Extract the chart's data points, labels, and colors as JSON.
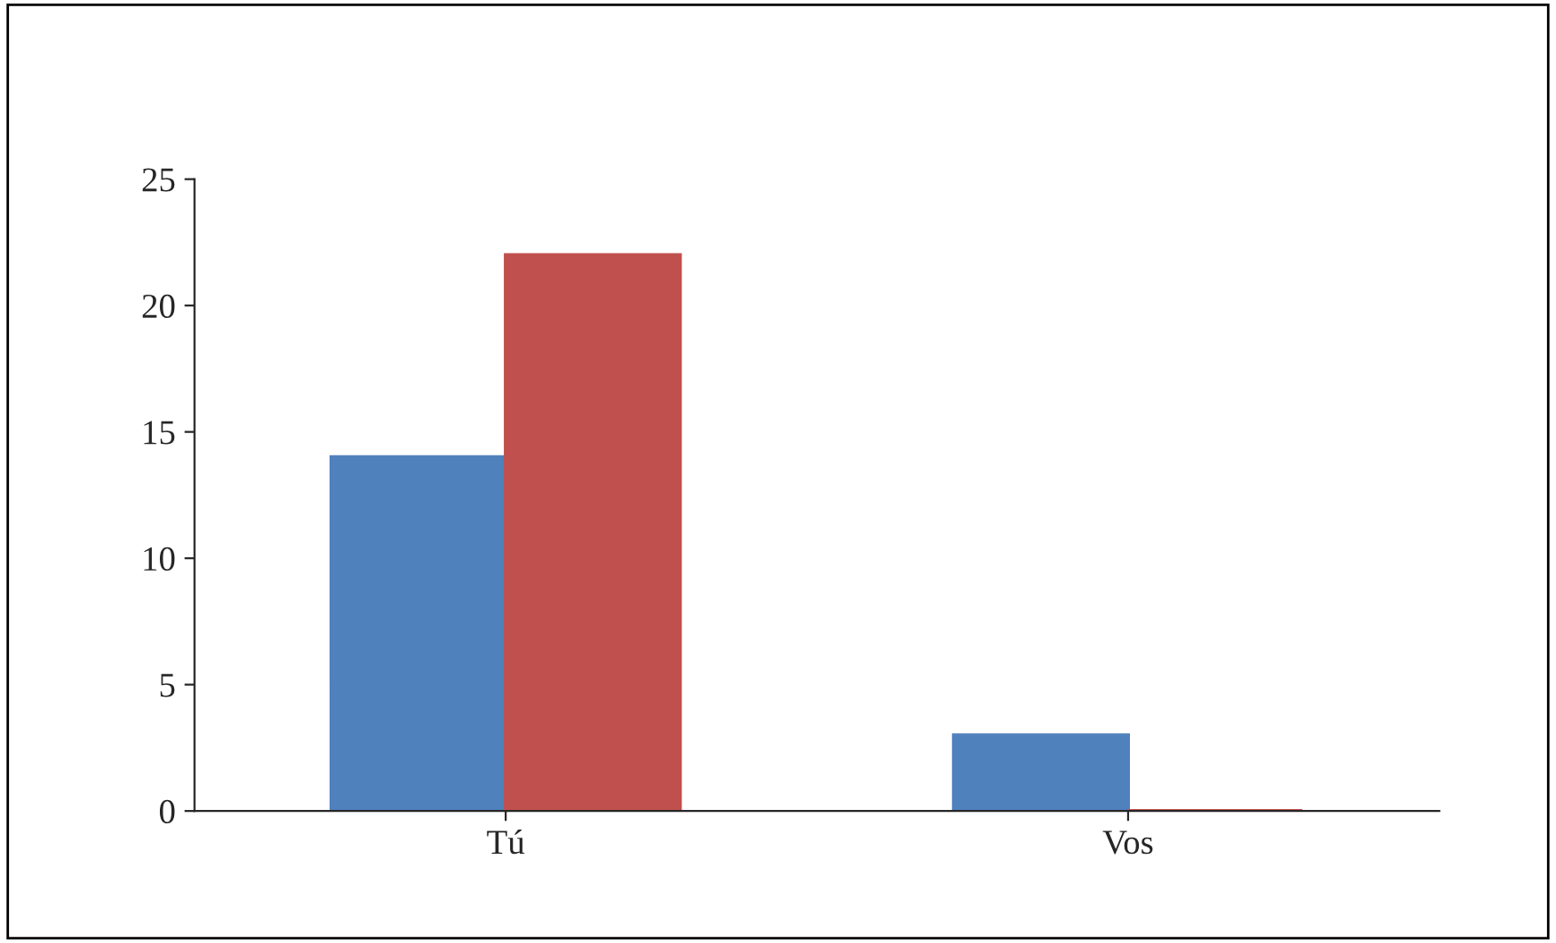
{
  "chart_data": {
    "type": "bar",
    "categories": [
      "Tú",
      "Vos"
    ],
    "series": [
      {
        "color": "#4f81bd",
        "values": [
          14,
          3
        ]
      },
      {
        "color": "#c0504d",
        "values": [
          22,
          0
        ]
      }
    ],
    "ylim": [
      0,
      25
    ],
    "yticks": [
      0,
      5,
      10,
      15,
      20,
      25
    ],
    "grid": false,
    "legend": false
  }
}
